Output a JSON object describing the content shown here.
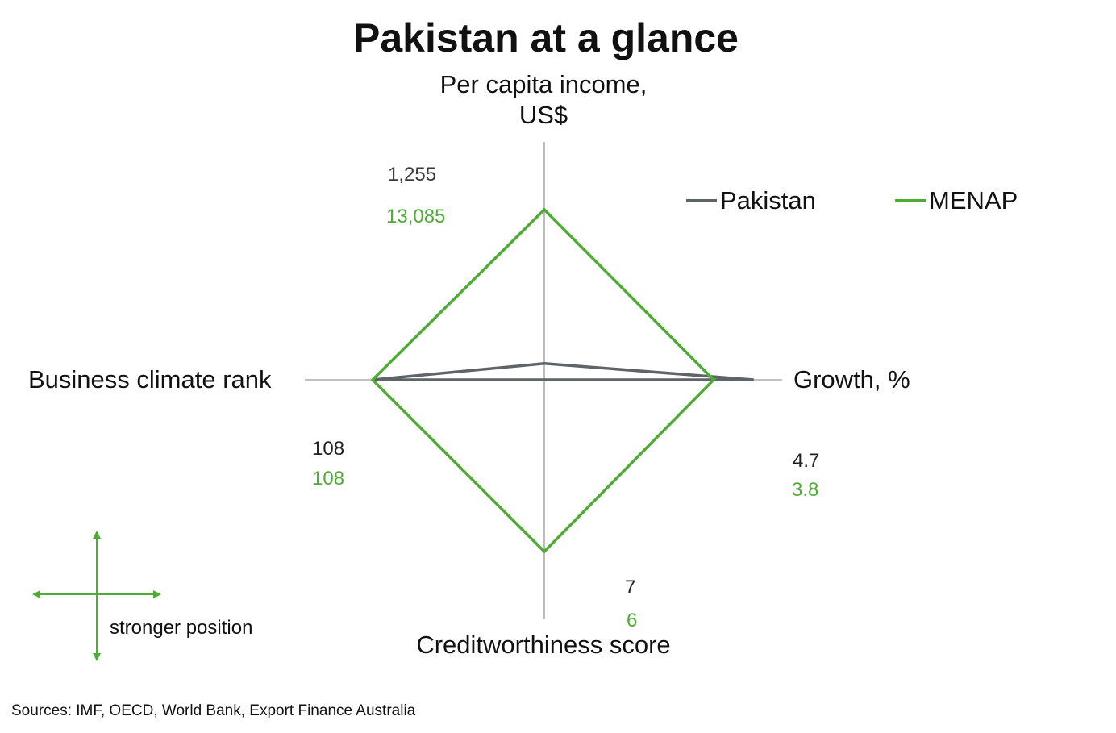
{
  "title": "Pakistan at a glance",
  "axes": {
    "top": "Per capita income,\nUS$",
    "right": "Growth, %",
    "bottom": "Creditworthiness score",
    "left": "Business climate rank"
  },
  "colors": {
    "pakistan": "#5f6468",
    "menap": "#4eac35",
    "axis": "#9a9a9a"
  },
  "legend": [
    {
      "name": "Pakistan",
      "color": "#5f6468"
    },
    {
      "name": "MENAP",
      "color": "#4eac35"
    }
  ],
  "chart_data": {
    "type": "radar",
    "axes": [
      "Per capita income, US$",
      "Growth, %",
      "Creditworthiness score",
      "Business climate rank"
    ],
    "series": [
      {
        "name": "Pakistan",
        "values": [
          1255,
          4.7,
          7,
          108
        ],
        "labels": [
          "1,255",
          "4.7",
          "7",
          "108"
        ]
      },
      {
        "name": "MENAP",
        "values": [
          13085,
          3.8,
          6,
          108
        ],
        "labels": [
          "13,085",
          "3.8",
          "6",
          "108"
        ]
      }
    ]
  },
  "guide_label": "stronger position",
  "source": "Sources: IMF, OECD, World Bank, Export Finance Australia"
}
